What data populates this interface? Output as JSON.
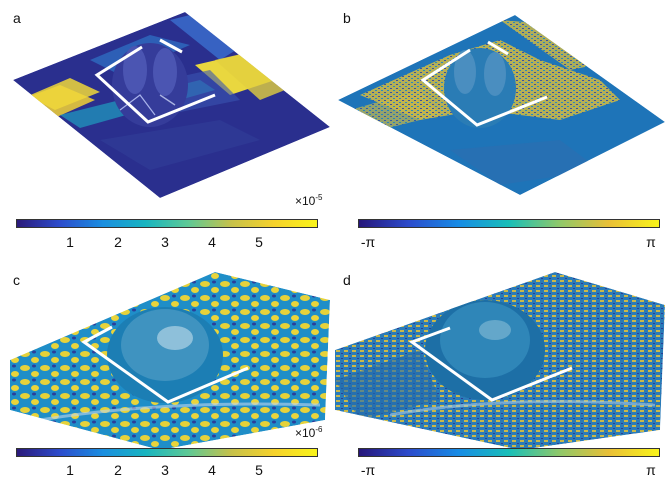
{
  "panels": {
    "a": {
      "letter": "a",
      "exponent_base": "×10",
      "exponent_power": "-5",
      "ticks": [
        "1",
        "2",
        "3",
        "4",
        "5"
      ]
    },
    "b": {
      "letter": "b",
      "tick_min": "-π",
      "tick_max": "π"
    },
    "c": {
      "letter": "c",
      "exponent_base": "×10",
      "exponent_power": "-6",
      "ticks": [
        "1",
        "2",
        "3",
        "4",
        "5"
      ]
    },
    "d": {
      "letter": "d",
      "tick_min": "-π",
      "tick_max": "π"
    }
  },
  "colors": {
    "background": "#ffffff",
    "navy": "#2b2f8f",
    "teal": "#1fa0b8",
    "yellow": "#d8c93a",
    "bright_yellow": "#f6e22b",
    "box": "#ffffff"
  }
}
